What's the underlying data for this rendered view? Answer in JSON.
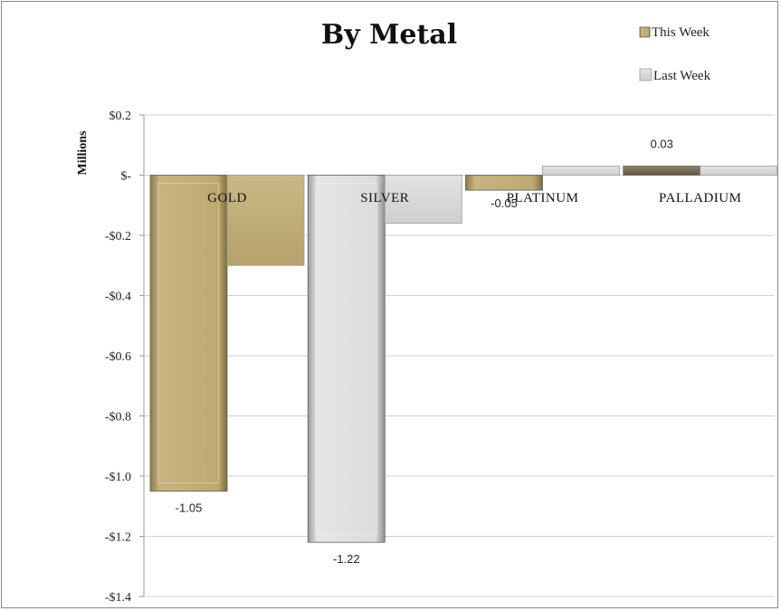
{
  "chart_data": {
    "type": "bar",
    "title": "By Metal",
    "ylabel": "Millions",
    "ylim": [
      -1.4,
      0.2
    ],
    "yticks": [
      {
        "value": 0.2,
        "label": "$0.2"
      },
      {
        "value": 0.0,
        "label": "$-"
      },
      {
        "value": -0.2,
        "label": "-$0.2"
      },
      {
        "value": -0.4,
        "label": "-$0.4"
      },
      {
        "value": -0.6,
        "label": "-$0.6"
      },
      {
        "value": -0.8,
        "label": "-$0.8"
      },
      {
        "value": -1.0,
        "label": "-$1.0"
      },
      {
        "value": -1.2,
        "label": "-$1.2"
      },
      {
        "value": -1.4,
        "label": "-$1.4"
      }
    ],
    "grid": true,
    "legend_position": "top-right",
    "categories": [
      "GOLD",
      "SILVER",
      "PLATINUM",
      "PALLADIUM"
    ],
    "series": [
      {
        "name": "This Week",
        "values": [
          -1.05,
          -1.22,
          -0.05,
          0.03
        ],
        "data_labels": [
          "-1.05",
          "-1.22",
          "-0.05",
          "0.03"
        ]
      },
      {
        "name": "Last Week",
        "values": [
          -0.3,
          -0.16,
          0.03,
          0.03
        ],
        "data_labels": [
          "",
          "",
          "",
          ""
        ]
      }
    ],
    "colors": {
      "gold": "#b3a06a",
      "silver": "#d6d6d6",
      "platinum": "#c6b27a",
      "palladium": "#7d7256",
      "last_week": "#dcdcdc",
      "last_week_gold": "#c2b07d"
    }
  }
}
